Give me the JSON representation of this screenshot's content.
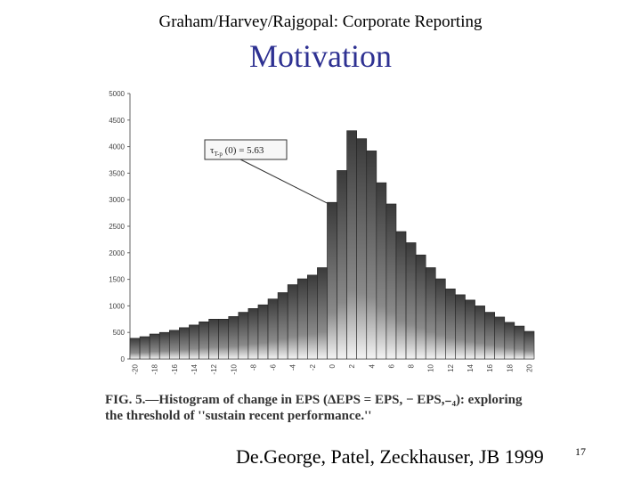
{
  "header": {
    "course": "Graham/Harvey/Rajgopal: Corporate Reporting",
    "title": "Motivation"
  },
  "caption": {
    "line1": "FIG. 5.—Histogram of change in EPS (ΔEPS = EPS, − EPS,₋₄): exploring",
    "line2": "the threshold of ''sustain recent performance.''"
  },
  "footer": {
    "citation": "De.George, Patel, Zeckhauser, JB 1999",
    "page": "17"
  },
  "chart_data": {
    "type": "bar",
    "title": "",
    "xlabel": "",
    "ylabel": "",
    "ylim": [
      0,
      5000
    ],
    "y_ticks": [
      0,
      500,
      1000,
      1500,
      2000,
      2500,
      3000,
      3500,
      4000,
      4500,
      5000
    ],
    "x_tick_labels": [
      "-20",
      "-18",
      "-16",
      "-14",
      "-12",
      "-10",
      "-8",
      "-6",
      "-4",
      "-2",
      "0",
      "2",
      "4",
      "6",
      "8",
      "10",
      "12",
      "14",
      "16",
      "18",
      "20"
    ],
    "categories": [
      "-20",
      "-19",
      "-18",
      "-17",
      "-16",
      "-15",
      "-14",
      "-13",
      "-12",
      "-11",
      "-10",
      "-9",
      "-8",
      "-7",
      "-6",
      "-5",
      "-4",
      "-3",
      "-2",
      "-1",
      "0",
      "1",
      "2",
      "3",
      "4",
      "5",
      "6",
      "7",
      "8",
      "9",
      "10",
      "11",
      "12",
      "13",
      "14",
      "15",
      "16",
      "17",
      "18",
      "19",
      "20"
    ],
    "values": [
      390,
      420,
      470,
      500,
      540,
      590,
      640,
      700,
      750,
      750,
      800,
      880,
      950,
      1020,
      1130,
      1250,
      1400,
      1510,
      1580,
      1720,
      2950,
      3550,
      4300,
      4150,
      3920,
      3320,
      2920,
      2400,
      2190,
      1960,
      1720,
      1510,
      1320,
      1210,
      1110,
      1000,
      880,
      790,
      690,
      620,
      520
    ],
    "annotation": {
      "text": "τ",
      "subscript": "T-p",
      "rest": " (0) = 5.63",
      "points_to": "0"
    },
    "grid": false,
    "legend": "none"
  }
}
